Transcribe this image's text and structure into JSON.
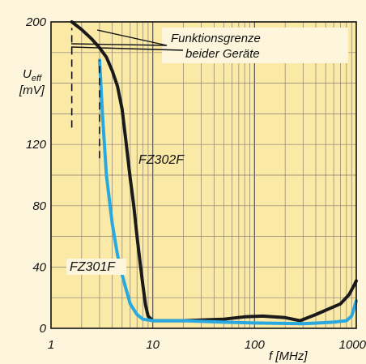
{
  "chart_data": {
    "type": "line",
    "xscale": "log",
    "xlim": [
      1,
      1000
    ],
    "ylim": [
      0,
      200
    ],
    "xlabel": "f [MHz]",
    "ylabel": {
      "main": "U",
      "sub": "eff",
      "unit": "[mV]"
    },
    "xticks": [
      {
        "value": 1,
        "label": "1"
      },
      {
        "value": 10,
        "label": "10"
      },
      {
        "value": 100,
        "label": "100"
      },
      {
        "value": 1000,
        "label": "1000"
      }
    ],
    "yticks": [
      {
        "value": 0,
        "label": "0"
      },
      {
        "value": 40,
        "label": "40"
      },
      {
        "value": 80,
        "label": "80"
      },
      {
        "value": 120,
        "label": "120"
      },
      {
        "value": 200,
        "label": "200"
      }
    ],
    "grid": true,
    "series": [
      {
        "name": "FZ302F",
        "color": "#1a1a1a",
        "points": [
          [
            1.6,
            200
          ],
          [
            2,
            195
          ],
          [
            2.5,
            189
          ],
          [
            3,
            183
          ],
          [
            3.5,
            177
          ],
          [
            4,
            168
          ],
          [
            4.5,
            158
          ],
          [
            5,
            143
          ],
          [
            5.5,
            120
          ],
          [
            6,
            98
          ],
          [
            6.5,
            80
          ],
          [
            7,
            60
          ],
          [
            7.5,
            43
          ],
          [
            8,
            28
          ],
          [
            8.5,
            15
          ],
          [
            9,
            8
          ],
          [
            10,
            5
          ],
          [
            20,
            5
          ],
          [
            50,
            6
          ],
          [
            80,
            7.5
          ],
          [
            120,
            8
          ],
          [
            200,
            7
          ],
          [
            280,
            5
          ],
          [
            400,
            9
          ],
          [
            550,
            13
          ],
          [
            700,
            16
          ],
          [
            850,
            22
          ],
          [
            950,
            28
          ],
          [
            1000,
            31
          ]
        ]
      },
      {
        "name": "FZ301F",
        "color": "#2aa9e0",
        "points": [
          [
            3,
            175
          ],
          [
            3.2,
            140
          ],
          [
            3.5,
            100
          ],
          [
            4,
            68
          ],
          [
            4.5,
            48
          ],
          [
            5,
            35
          ],
          [
            5.5,
            25
          ],
          [
            6,
            16
          ],
          [
            7,
            9
          ],
          [
            8,
            6
          ],
          [
            10,
            5
          ],
          [
            20,
            5
          ],
          [
            50,
            4
          ],
          [
            100,
            3.5
          ],
          [
            300,
            3
          ],
          [
            600,
            4
          ],
          [
            800,
            5
          ],
          [
            900,
            8
          ],
          [
            960,
            14
          ],
          [
            1000,
            18
          ]
        ]
      }
    ],
    "annotations": [
      {
        "text": "Funktionsgrenze",
        "anchor": [
          15,
          188
        ]
      },
      {
        "text": "beider Geräte",
        "anchor": [
          15,
          178
        ]
      }
    ],
    "limit_markers": [
      {
        "series": "FZ302F",
        "x": 1.6,
        "y_from": 131,
        "y_to": 196
      },
      {
        "series": "FZ301F",
        "x": 3,
        "y_from": 111,
        "y_to": 175
      }
    ]
  }
}
